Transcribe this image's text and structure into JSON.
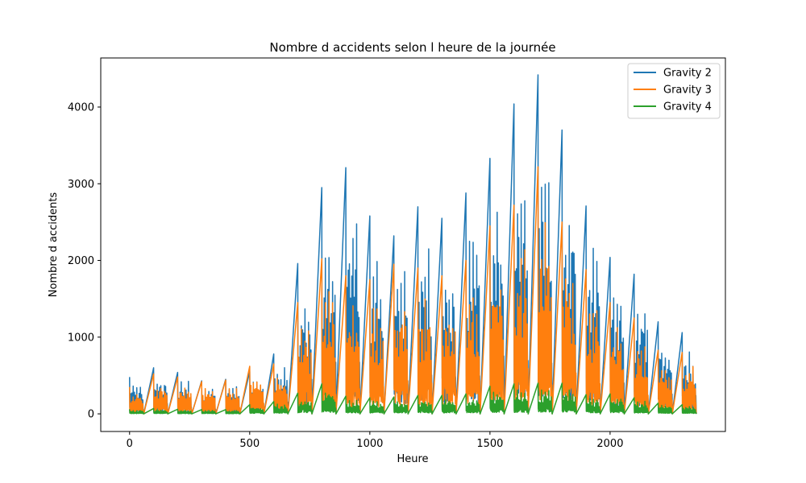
{
  "chart_data": {
    "type": "line",
    "title": "Nombre d accidents selon l heure de la journée",
    "xlabel": "Heure",
    "ylabel": "Nombre d accidents",
    "xlim": [
      -120,
      2480
    ],
    "ylim": [
      -230,
      4640
    ],
    "xticks": [
      0,
      500,
      1000,
      1500,
      2000
    ],
    "yticks": [
      0,
      1000,
      2000,
      3000,
      4000
    ],
    "legend_position": "top-right",
    "hours": [
      {
        "h": 0,
        "peaks": [
          480,
          350,
          60
        ]
      },
      {
        "h": 1,
        "peaks": [
          600,
          520,
          70
        ]
      },
      {
        "h": 2,
        "peaks": [
          540,
          480,
          60
        ]
      },
      {
        "h": 3,
        "peaks": [
          430,
          420,
          55
        ]
      },
      {
        "h": 4,
        "peaks": [
          450,
          440,
          55
        ]
      },
      {
        "h": 5,
        "peaks": [
          550,
          620,
          120
        ]
      },
      {
        "h": 6,
        "peaks": [
          780,
          650,
          160
        ]
      },
      {
        "h": 7,
        "peaks": [
          1960,
          1450,
          270
        ]
      },
      {
        "h": 8,
        "peaks": [
          2950,
          2020,
          390
        ]
      },
      {
        "h": 9,
        "peaks": [
          3210,
          1800,
          230
        ]
      },
      {
        "h": 10,
        "peaks": [
          2580,
          1750,
          210
        ]
      },
      {
        "h": 11,
        "peaks": [
          2320,
          1950,
          220
        ]
      },
      {
        "h": 12,
        "peaks": [
          2700,
          1900,
          240
        ]
      },
      {
        "h": 13,
        "peaks": [
          2550,
          1800,
          240
        ]
      },
      {
        "h": 14,
        "peaks": [
          2880,
          2000,
          260
        ]
      },
      {
        "h": 15,
        "peaks": [
          3330,
          2450,
          360
        ]
      },
      {
        "h": 16,
        "peaks": [
          4040,
          2720,
          390
        ]
      },
      {
        "h": 17,
        "peaks": [
          4420,
          3220,
          400
        ]
      },
      {
        "h": 18,
        "peaks": [
          3700,
          2500,
          400
        ]
      },
      {
        "h": 19,
        "peaks": [
          2710,
          1880,
          250
        ]
      },
      {
        "h": 20,
        "peaks": [
          2040,
          1450,
          260
        ]
      },
      {
        "h": 21,
        "peaks": [
          1820,
          1250,
          210
        ]
      },
      {
        "h": 22,
        "peaks": [
          1200,
          830,
          140
        ]
      },
      {
        "h": 23,
        "peaks": [
          1060,
          800,
          120
        ]
      }
    ],
    "series": [
      {
        "name": "Gravity 2",
        "color": "#1f77b4"
      },
      {
        "name": "Gravity 3",
        "color": "#ff7f0e"
      },
      {
        "name": "Gravity 4",
        "color": "#2ca02c"
      }
    ]
  }
}
